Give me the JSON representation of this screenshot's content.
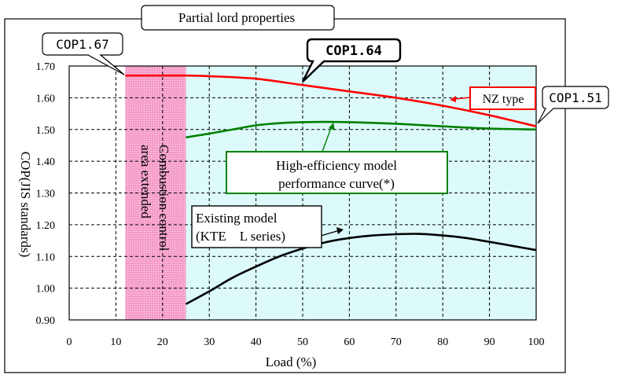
{
  "chart_data": {
    "type": "line",
    "title": "Partial lord properties",
    "xlabel": "Load (%)",
    "ylabel": "COP(JIS standards)",
    "xlim": [
      0,
      100
    ],
    "ylim": [
      0.9,
      1.7
    ],
    "x_ticks": [
      "0",
      "10",
      "20",
      "30",
      "40",
      "50",
      "60",
      "70",
      "80",
      "90",
      "100"
    ],
    "y_ticks": [
      "0.90",
      "1.00",
      "1.10",
      "1.20",
      "1.30",
      "1.40",
      "1.50",
      "1.60",
      "1.70"
    ],
    "grid": true,
    "series": [
      {
        "name": "NZ type",
        "color": "#ff0000",
        "x": [
          12,
          20,
          25,
          30,
          40,
          50,
          60,
          70,
          80,
          90,
          100
        ],
        "y": [
          1.67,
          1.67,
          1.67,
          1.668,
          1.66,
          1.64,
          1.62,
          1.6,
          1.575,
          1.545,
          1.51
        ]
      },
      {
        "name": "High-efficiency model performance curve(*)",
        "color": "#008000",
        "x": [
          25,
          30,
          35,
          40,
          45,
          50,
          55,
          60,
          70,
          80,
          90,
          100
        ],
        "y": [
          1.475,
          1.487,
          1.5,
          1.513,
          1.52,
          1.523,
          1.524,
          1.523,
          1.518,
          1.51,
          1.503,
          1.5
        ]
      },
      {
        "name": "Existing model (KTE　L series)",
        "color": "#000000",
        "x": [
          25,
          30,
          35,
          40,
          45,
          50,
          55,
          60,
          65,
          70,
          75,
          80,
          85,
          90,
          95,
          100
        ],
        "y": [
          0.95,
          0.99,
          1.033,
          1.068,
          1.1,
          1.125,
          1.145,
          1.158,
          1.166,
          1.17,
          1.171,
          1.166,
          1.158,
          1.146,
          1.133,
          1.12
        ]
      }
    ],
    "shaded_regions": [
      {
        "label": "Combustion control area extended",
        "x_from": 12,
        "x_to": 25,
        "color": "#f7a8cf"
      },
      {
        "x_from": 25,
        "x_to": 100,
        "color": "#ddfafa"
      }
    ],
    "annotations": [
      {
        "text": "COP1.67"
      },
      {
        "text": "COP1.64"
      },
      {
        "text": "COP1.51"
      },
      {
        "text": "NZ type"
      },
      {
        "text": "High-efficiency model"
      },
      {
        "text": "performance curve(*)"
      },
      {
        "text": "Existing model"
      },
      {
        "text": "(KTE　L series)"
      },
      {
        "text": "Combustion control"
      },
      {
        "text": "area extended"
      }
    ]
  }
}
